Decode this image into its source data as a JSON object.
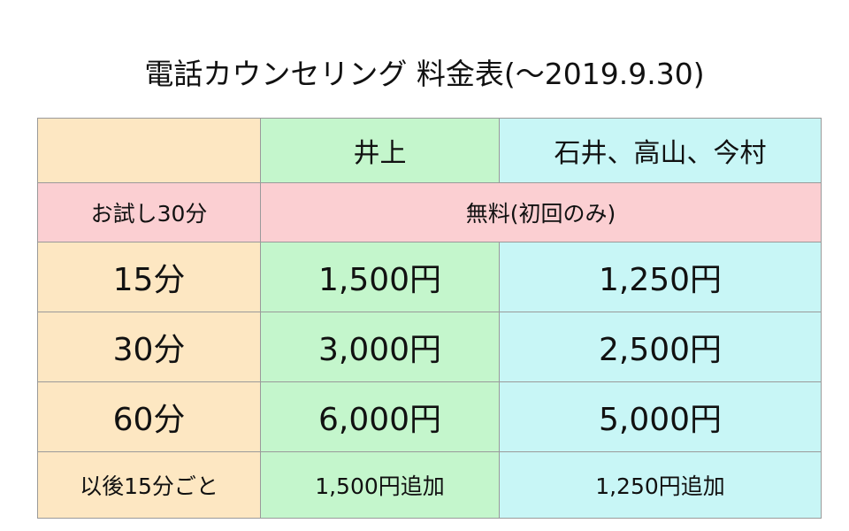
{
  "title": "電話カウンセリング 料金表(〜2019.9.30)",
  "colors": {
    "label_column": "#fde7c2",
    "inoue_column": "#c4f6cc",
    "others_column": "#c8f6f6",
    "free_row": "#fbcfd2",
    "border": "#9a9a9a"
  },
  "header": {
    "corner": "",
    "col_inoue": "井上",
    "col_others": "石井、高山、今村"
  },
  "trial_row": {
    "label": "お試し30分",
    "value": "無料(初回のみ)"
  },
  "price_rows": [
    {
      "duration": "15分",
      "inoue": "1,500円",
      "others": "1,250円"
    },
    {
      "duration": "30分",
      "inoue": "3,000円",
      "others": "2,500円"
    },
    {
      "duration": "60分",
      "inoue": "6,000円",
      "others": "5,000円"
    }
  ],
  "extra_row": {
    "label": "以後15分ごと",
    "inoue": "1,500円追加",
    "others": "1,250円追加"
  }
}
